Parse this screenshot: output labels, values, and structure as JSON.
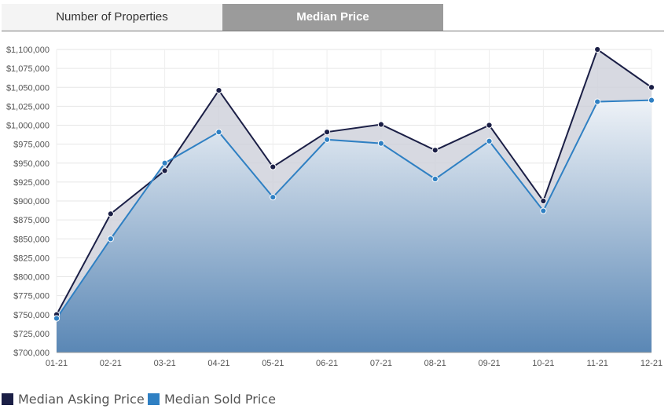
{
  "tabs": [
    {
      "label": "Number of Properties",
      "active": false
    },
    {
      "label": "Median Price",
      "active": true
    }
  ],
  "colors": {
    "asking": "#1b1f46",
    "sold": "#2f80c3",
    "fill_top": "#eef2f7",
    "fill_bottom": "#5a87b5",
    "band": "#cdd0da"
  },
  "chart_data": {
    "type": "area",
    "title": "",
    "xlabel": "",
    "ylabel": "",
    "categories": [
      "01-21",
      "02-21",
      "03-21",
      "04-21",
      "05-21",
      "06-21",
      "07-21",
      "08-21",
      "09-21",
      "10-21",
      "11-21",
      "12-21"
    ],
    "ylim": [
      700000,
      1100000
    ],
    "yticks": [
      700000,
      725000,
      750000,
      775000,
      800000,
      825000,
      850000,
      875000,
      900000,
      925000,
      950000,
      975000,
      1000000,
      1025000,
      1050000,
      1075000,
      1100000
    ],
    "ytick_labels": [
      "$700,000",
      "$725,000",
      "$750,000",
      "$775,000",
      "$800,000",
      "$825,000",
      "$850,000",
      "$875,000",
      "$900,000",
      "$925,000",
      "$950,000",
      "$975,000",
      "$1,000,000",
      "$1,025,000",
      "$1,050,000",
      "$1,075,000",
      "$1,100,000"
    ],
    "grid": true,
    "legend_position": "bottom-left",
    "series": [
      {
        "name": "Median Asking Price",
        "values": [
          750000,
          883000,
          940000,
          1046000,
          945000,
          991000,
          1001000,
          967000,
          1000000,
          900000,
          1100000,
          1050000
        ]
      },
      {
        "name": "Median Sold Price",
        "values": [
          745000,
          850000,
          950000,
          991000,
          905000,
          981000,
          976000,
          929000,
          979000,
          887000,
          1031000,
          1033000
        ]
      }
    ]
  }
}
